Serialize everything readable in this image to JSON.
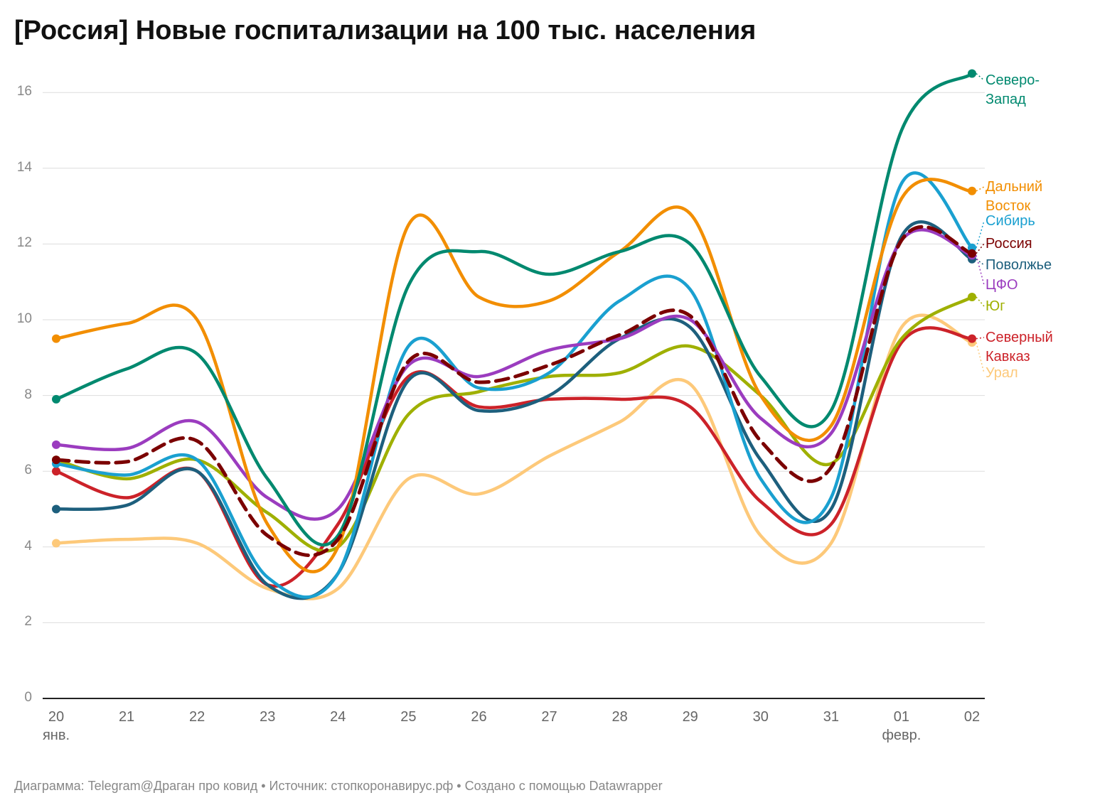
{
  "chart_data": {
    "type": "line",
    "title": "[Россия] Новые госпитализации на 100 тыс. населения",
    "footer": "Диаграмма: Telegram@Драган про ковид • Источник: стопкоронавирус.рф • Создано с помощью Datawrapper",
    "categories": [
      "20\nянв.",
      "21",
      "22",
      "23",
      "24",
      "25",
      "26",
      "27",
      "28",
      "29",
      "30",
      "31",
      "01\nфевр.",
      "02"
    ],
    "ylim": [
      0,
      17
    ],
    "yticks": [
      0,
      2,
      4,
      6,
      8,
      10,
      12,
      14,
      16
    ],
    "grid": true,
    "series": [
      {
        "name": "Северо-Запад",
        "color": "#00896f",
        "values": [
          7.9,
          8.7,
          9.1,
          5.8,
          4.3,
          10.9,
          11.8,
          11.2,
          11.8,
          12.0,
          8.5,
          7.6,
          15.0,
          16.5
        ]
      },
      {
        "name": "Дальний Восток",
        "color": "#f28e00",
        "values": [
          9.5,
          9.9,
          10.0,
          4.6,
          4.0,
          12.5,
          10.6,
          10.5,
          11.8,
          12.8,
          8.0,
          7.2,
          13.2,
          13.4
        ]
      },
      {
        "name": "Сибирь",
        "color": "#1aa0d0",
        "values": [
          6.2,
          5.9,
          6.3,
          3.2,
          3.3,
          9.3,
          8.2,
          8.6,
          10.5,
          10.8,
          5.8,
          5.3,
          13.6,
          11.9
        ]
      },
      {
        "name": "Россия",
        "color": "#7b0000",
        "dashed": true,
        "values": [
          6.3,
          6.25,
          6.8,
          4.3,
          4.2,
          8.9,
          8.35,
          8.8,
          9.6,
          10.1,
          6.8,
          6.1,
          12.1,
          11.75
        ]
      },
      {
        "name": "Поволжье",
        "color": "#1d5f7d",
        "values": [
          5.0,
          5.1,
          6.0,
          3.0,
          3.3,
          8.4,
          7.6,
          8.0,
          9.5,
          9.8,
          6.3,
          5.0,
          12.2,
          11.6
        ]
      },
      {
        "name": "ЦФО",
        "color": "#9b3cbf",
        "values": [
          6.7,
          6.6,
          7.3,
          5.3,
          5.0,
          8.8,
          8.5,
          9.2,
          9.5,
          10.0,
          7.4,
          7.0,
          12.1,
          11.7
        ]
      },
      {
        "name": "Юг",
        "color": "#9fb000",
        "values": [
          6.3,
          5.8,
          6.3,
          4.9,
          4.0,
          7.5,
          8.1,
          8.5,
          8.6,
          9.3,
          8.0,
          6.2,
          9.5,
          10.6
        ]
      },
      {
        "name": "Северный Кавказ",
        "color": "#cc2229",
        "values": [
          6.0,
          5.3,
          6.0,
          3.0,
          4.6,
          8.5,
          7.7,
          7.9,
          7.9,
          7.7,
          5.2,
          4.6,
          9.4,
          9.5
        ]
      },
      {
        "name": "Урал",
        "color": "#fdc97a",
        "values": [
          4.1,
          4.2,
          4.1,
          2.9,
          2.9,
          5.8,
          5.4,
          6.4,
          7.3,
          8.3,
          4.3,
          4.1,
          9.8,
          9.4
        ]
      }
    ]
  }
}
